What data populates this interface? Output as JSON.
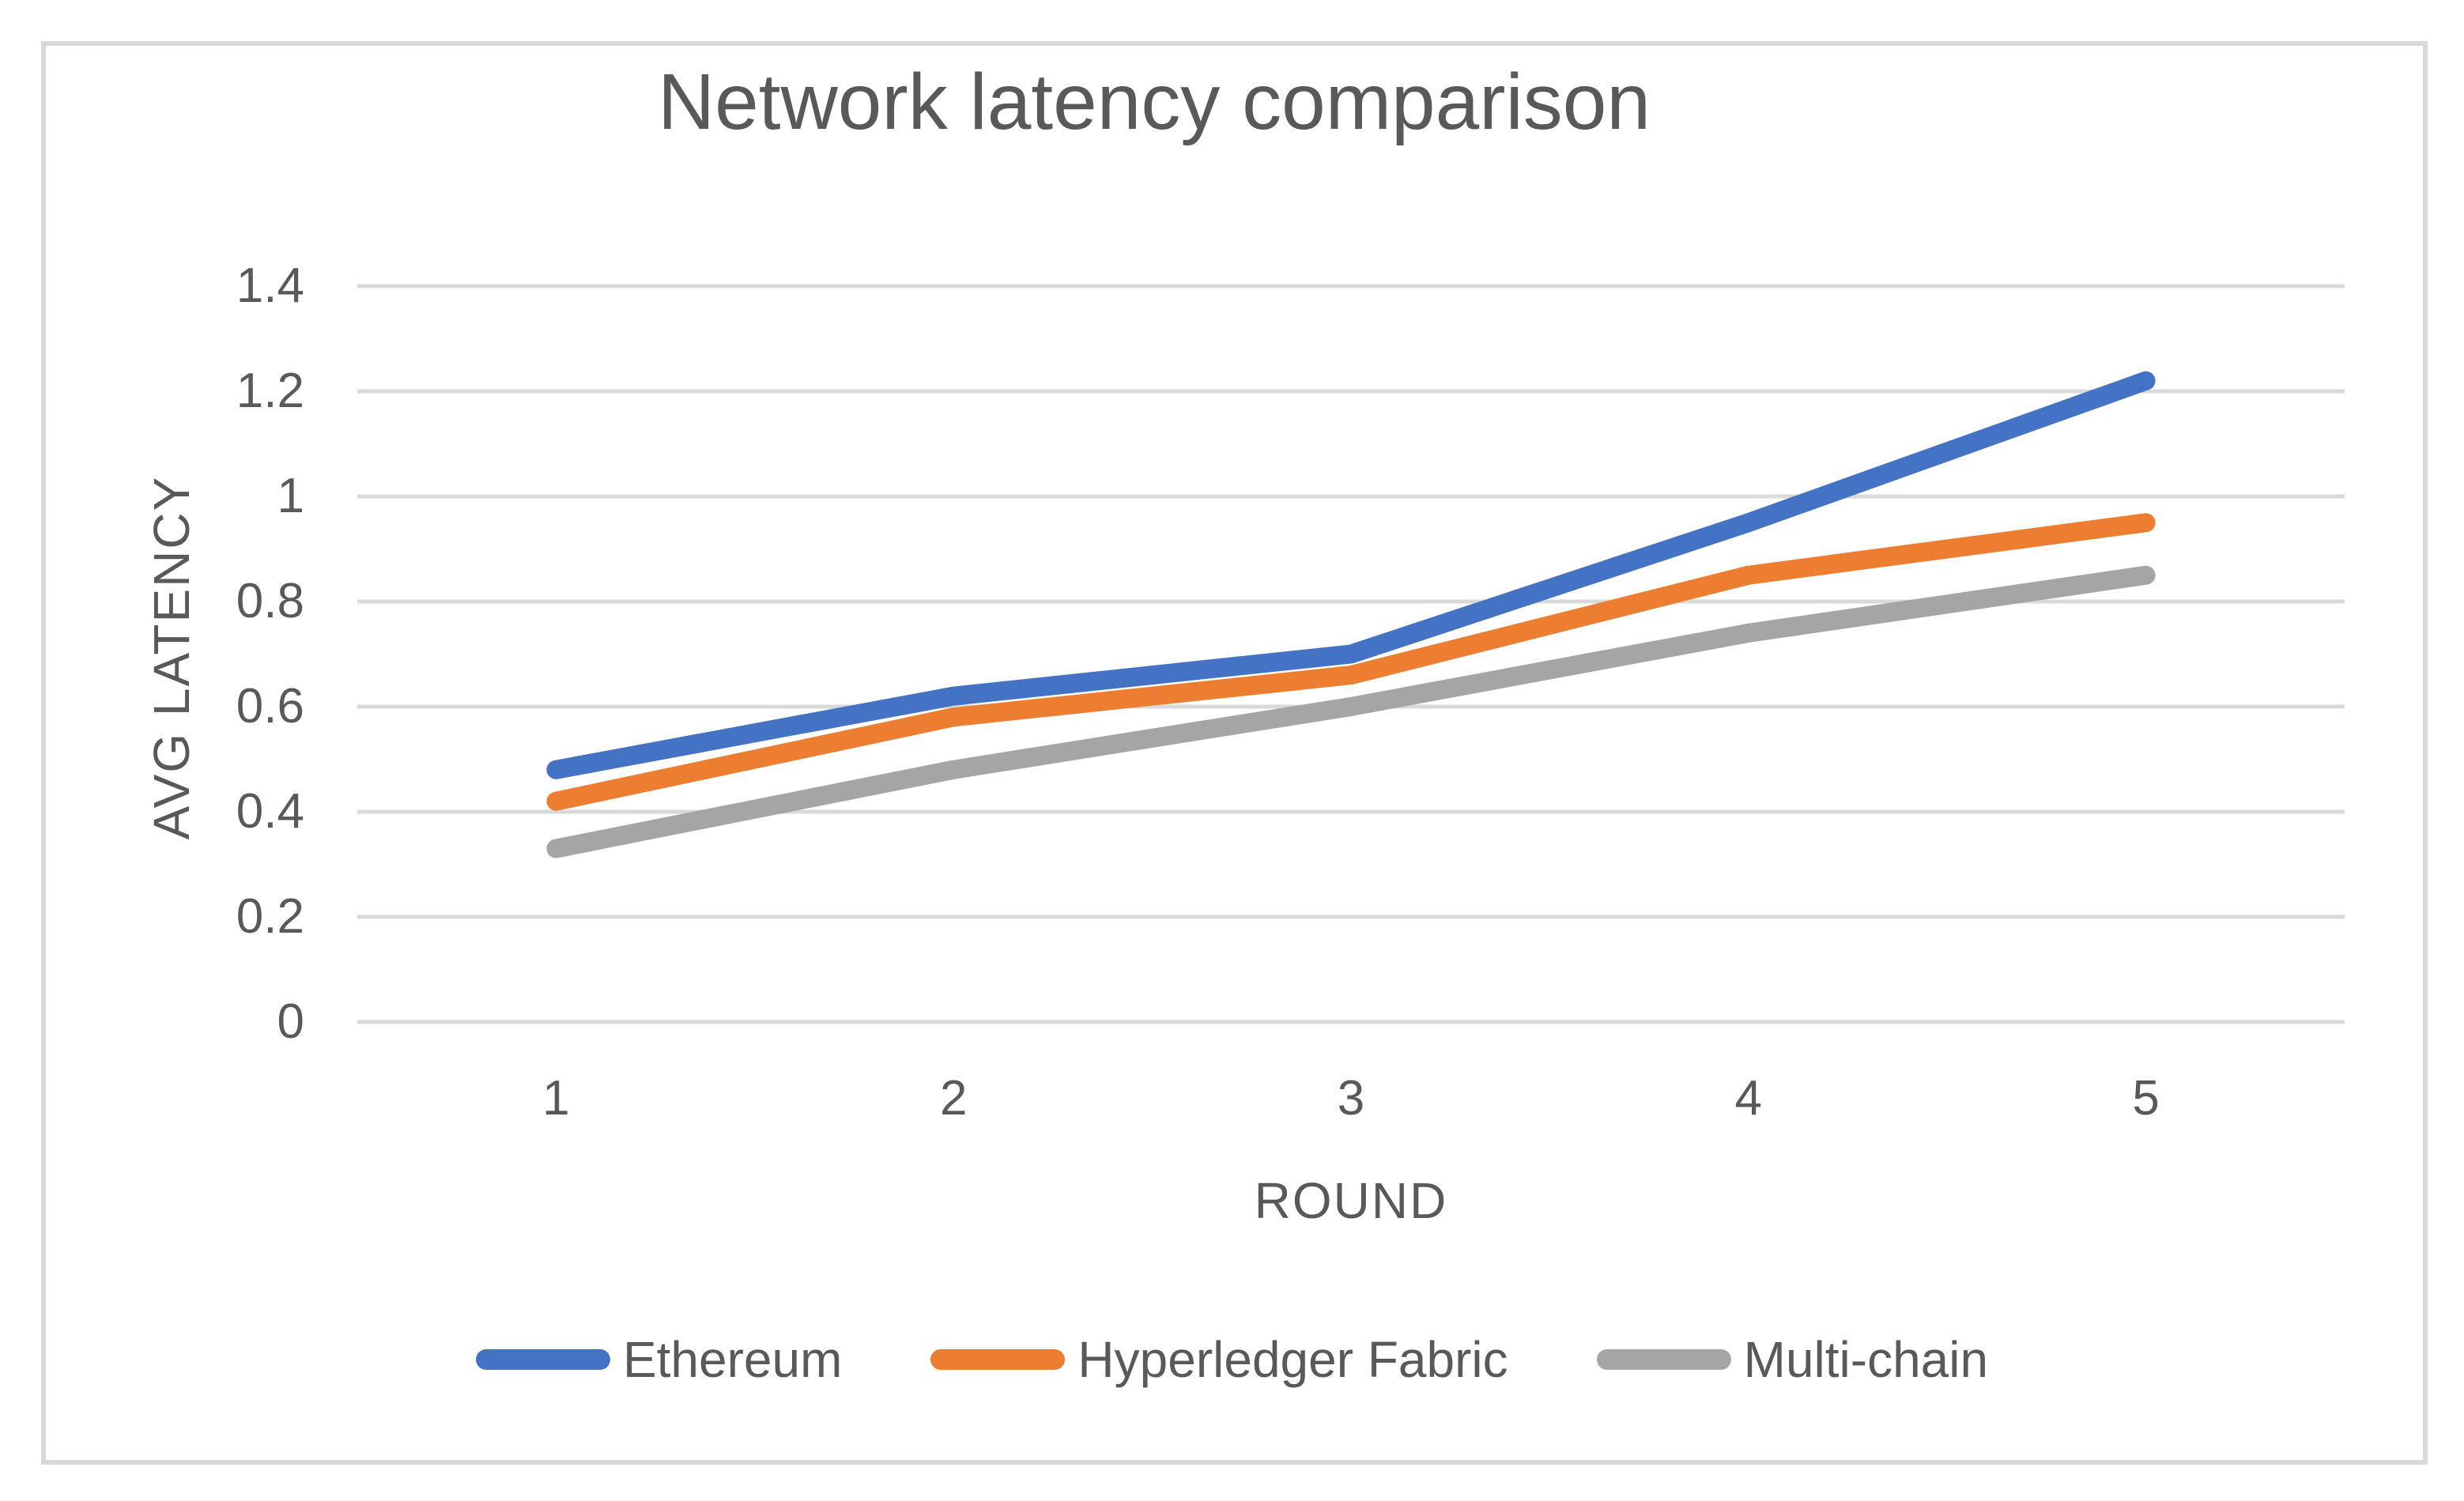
{
  "chart_data": {
    "type": "line",
    "title": "Network latency comparison",
    "xlabel": "ROUND",
    "ylabel": "AVG LATENCY",
    "categories": [
      "1",
      "2",
      "3",
      "4",
      "5"
    ],
    "y_ticks": [
      "1.4",
      "1.2",
      "1",
      "0.8",
      "0.6",
      "0.4",
      "0.2",
      "0"
    ],
    "ylim": [
      0,
      1.4
    ],
    "grid": "horizontal gridlines on",
    "legend_position": "bottom",
    "series": [
      {
        "name": "Ethereum",
        "color": "#4472C4",
        "values": [
          0.48,
          0.62,
          0.7,
          0.95,
          1.22
        ]
      },
      {
        "name": "Hyperledger Fabric",
        "color": "#ED7D31",
        "values": [
          0.42,
          0.58,
          0.66,
          0.85,
          0.95
        ]
      },
      {
        "name": "Multi-chain",
        "color": "#A5A5A5",
        "values": [
          0.33,
          0.48,
          0.6,
          0.74,
          0.85
        ]
      }
    ]
  },
  "colors": {
    "text": "#595959",
    "gridline": "#D9D9D9",
    "frame_border": "#D9D9D9",
    "background": "#FFFFFF"
  }
}
